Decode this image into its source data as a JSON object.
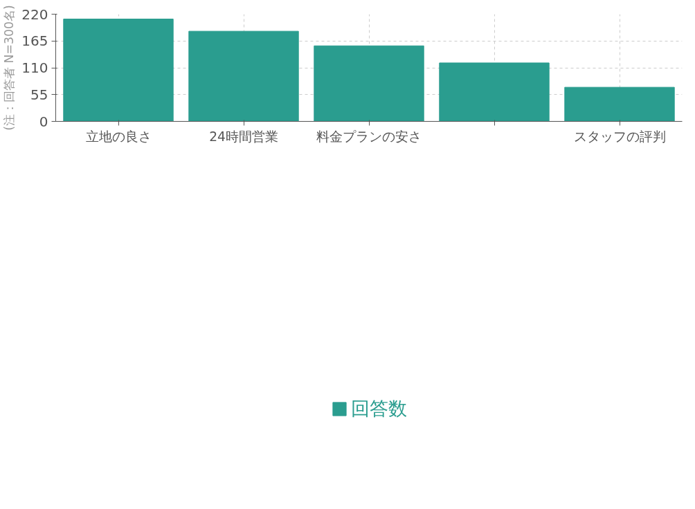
{
  "chart_data": {
    "type": "bar",
    "ylabel": "(注：回答者 N=300名)",
    "categories": [
      "立地の良さ",
      "24時間営業",
      "料金プランの安さ",
      null,
      "スタッフの評判"
    ],
    "series": [
      {
        "name": "回答数",
        "color": "#2a9d8f",
        "values": [
          210,
          185,
          155,
          120,
          70
        ]
      }
    ],
    "ylim": [
      0,
      220
    ],
    "yticks": [
      0,
      55,
      110,
      165,
      220
    ],
    "grid": true,
    "legend": "bottom"
  }
}
